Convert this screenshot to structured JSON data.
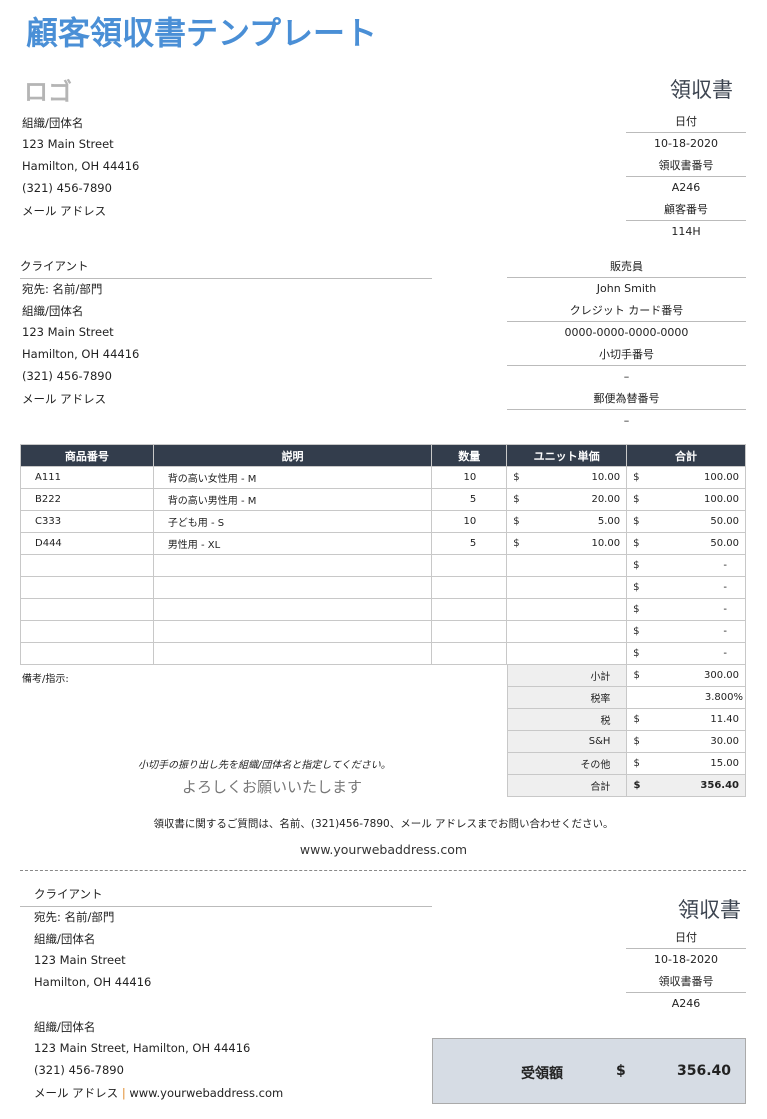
{
  "title": "顧客領収書テンプレート",
  "logo": "ロゴ",
  "receipt_label": "領収書",
  "company": {
    "name": "組織/団体名",
    "street": "123 Main Street",
    "city": "Hamilton, OH 44416",
    "phone": "(321) 456-7890",
    "email": "メール アドレス"
  },
  "info": {
    "date_label": "日付",
    "date": "10-18-2020",
    "receipt_no_label": "領収書番号",
    "receipt_no": "A246",
    "customer_no_label": "顧客番号",
    "customer_no": "114H"
  },
  "client": {
    "label": "クライアント",
    "attn": "宛先: 名前/部門",
    "name": "組織/団体名",
    "street": "123 Main Street",
    "city": "Hamilton, OH 44416",
    "phone": "(321) 456-7890",
    "email": "メール アドレス"
  },
  "payment": {
    "salesperson_label": "販売員",
    "salesperson": "John Smith",
    "card_label": "クレジット カード番号",
    "card": "0000-0000-0000-0000",
    "check_label": "小切手番号",
    "check": "–",
    "money_order_label": "郵便為替番号",
    "money_order": "–"
  },
  "table": {
    "headers": [
      "商品番号",
      "説明",
      "数量",
      "ユニット単価",
      "合計"
    ],
    "rows": [
      {
        "id": "A111",
        "desc": "背の高い女性用 - M",
        "qty": "10",
        "price": "10.00",
        "total": "100.00"
      },
      {
        "id": "B222",
        "desc": "背の高い男性用 - M",
        "qty": "5",
        "price": "20.00",
        "total": "100.00"
      },
      {
        "id": "C333",
        "desc": "子ども用 - S",
        "qty": "10",
        "price": "5.00",
        "total": "50.00"
      },
      {
        "id": "D444",
        "desc": "男性用 - XL",
        "qty": "5",
        "price": "10.00",
        "total": "50.00"
      },
      {
        "id": "",
        "desc": "",
        "qty": "",
        "price": "",
        "total": "-"
      },
      {
        "id": "",
        "desc": "",
        "qty": "",
        "price": "",
        "total": "-"
      },
      {
        "id": "",
        "desc": "",
        "qty": "",
        "price": "",
        "total": "-"
      },
      {
        "id": "",
        "desc": "",
        "qty": "",
        "price": "",
        "total": "-"
      },
      {
        "id": "",
        "desc": "",
        "qty": "",
        "price": "",
        "total": "-"
      }
    ],
    "currency": "$"
  },
  "totals": {
    "subtotal_label": "小計",
    "subtotal": "300.00",
    "tax_rate_label": "税率",
    "tax_rate": "3.800%",
    "tax_label": "税",
    "tax": "11.40",
    "sh_label": "S&H",
    "sh": "30.00",
    "other_label": "その他",
    "other": "15.00",
    "total_label": "合計",
    "total": "356.40"
  },
  "notes_label": "備考/指示:",
  "check_note": "小切手の振り出し先を組織/団体名と指定してください。",
  "thanks": "よろしくお願いいたします",
  "contact_note": "領収書に関するご質問は、名前、(321)456-7890、メール アドレスまでお問い合わせください。",
  "website": "www.yourwebaddress.com",
  "stub": {
    "client_label": "クライアント",
    "attn": "宛先: 名前/部門",
    "name": "組織/団体名",
    "street": "123 Main Street",
    "city": "Hamilton, OH 44416",
    "company_name": "組織/団体名",
    "company_address": "123 Main Street, Hamilton, OH 44416",
    "company_phone": "(321) 456-7890",
    "company_email": "メール アドレス",
    "separator": "|",
    "company_web": "www.yourwebaddress.com",
    "receipt_label": "領収書",
    "date_label": "日付",
    "date": "10-18-2020",
    "receipt_no_label": "領収書番号",
    "receipt_no": "A246",
    "amount_label": "受領額",
    "currency": "$",
    "amount": "356.40"
  }
}
